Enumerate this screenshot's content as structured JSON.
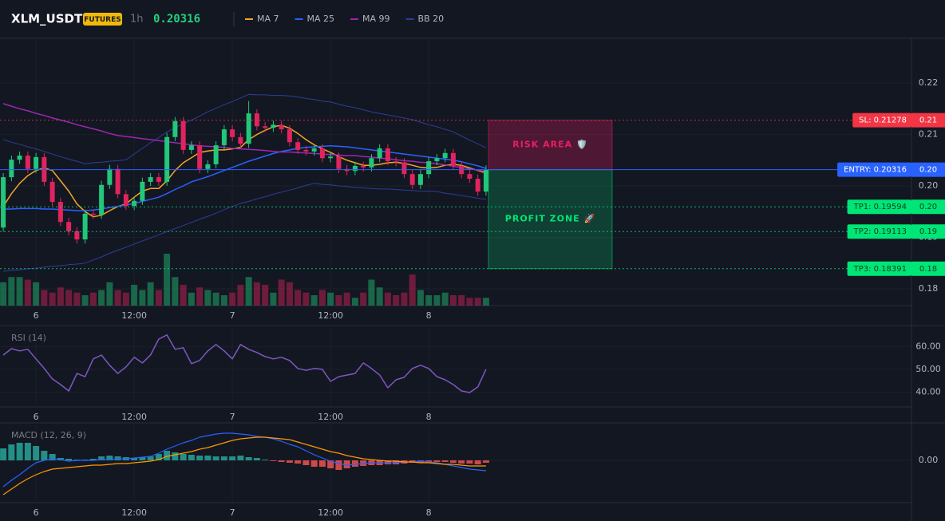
{
  "header": {
    "symbol": "XLM_USDT",
    "badge": "FUTURES",
    "interval": "1h",
    "price": 0.20316
  },
  "chart_data": [
    {
      "type": "candlestick",
      "x": [
        -4,
        -3,
        -2,
        -1,
        0,
        1,
        2,
        3,
        4,
        5,
        6,
        7,
        8,
        9,
        10,
        11,
        12,
        13,
        14,
        15,
        16,
        17,
        18,
        19,
        20,
        21,
        22,
        23,
        24,
        25,
        26,
        27,
        28,
        29,
        30,
        31,
        32,
        33,
        34,
        35,
        36,
        37,
        38,
        39,
        40,
        41,
        42,
        43,
        44,
        45,
        46,
        47,
        48,
        49,
        50,
        51,
        52,
        53,
        54,
        55
      ],
      "open": [
        0.1919,
        0.2017,
        0.2051,
        0.2059,
        0.2033,
        0.2056,
        0.2008,
        0.1969,
        0.193,
        0.1912,
        0.1896,
        0.1946,
        0.1944,
        0.2002,
        0.2033,
        0.1984,
        0.1961,
        0.1971,
        0.2008,
        0.2017,
        0.2008,
        0.2095,
        0.2126,
        0.207,
        0.2079,
        0.2033,
        0.2042,
        0.2079,
        0.211,
        0.2095,
        0.2082,
        0.2141,
        0.2116,
        0.2113,
        0.2119,
        0.211,
        0.2085,
        0.207,
        0.2067,
        0.2073,
        0.2054,
        0.2057,
        0.2033,
        0.2029,
        0.2039,
        0.2036,
        0.2054,
        0.2073,
        0.2048,
        0.2046,
        0.2023,
        0.2002,
        0.2023,
        0.2048,
        0.2054,
        0.2064,
        0.2039,
        0.2023,
        0.2014,
        0.1989
      ],
      "high": [
        0.2025,
        0.2059,
        0.2067,
        0.2067,
        0.2064,
        0.2064,
        0.2016,
        0.1977,
        0.1938,
        0.192,
        0.1954,
        0.1954,
        0.201,
        0.2041,
        0.2041,
        0.1992,
        0.1979,
        0.2016,
        0.2025,
        0.2025,
        0.2103,
        0.2134,
        0.2134,
        0.2087,
        0.2087,
        0.205,
        0.2087,
        0.2118,
        0.2118,
        0.2103,
        0.2165,
        0.2149,
        0.2124,
        0.2127,
        0.2127,
        0.2118,
        0.2093,
        0.2078,
        0.2081,
        0.2081,
        0.2065,
        0.2065,
        0.2041,
        0.2047,
        0.2047,
        0.2062,
        0.2081,
        0.2081,
        0.2056,
        0.2054,
        0.2031,
        0.2031,
        0.2056,
        0.2062,
        0.2072,
        0.2072,
        0.2047,
        0.2031,
        0.2022,
        0.204
      ],
      "low": [
        0.1911,
        0.2009,
        0.2043,
        0.2025,
        0.2025,
        0.2,
        0.1961,
        0.1922,
        0.1904,
        0.1888,
        0.1888,
        0.1936,
        0.1936,
        0.1994,
        0.1976,
        0.1953,
        0.1953,
        0.1963,
        0.2,
        0.2,
        0.2,
        0.2087,
        0.2062,
        0.2062,
        0.2025,
        0.2025,
        0.2034,
        0.2071,
        0.2087,
        0.2074,
        0.2074,
        0.2108,
        0.2105,
        0.2105,
        0.2102,
        0.2077,
        0.2062,
        0.2059,
        0.2059,
        0.2046,
        0.2046,
        0.2025,
        0.2021,
        0.2021,
        0.2028,
        0.2028,
        0.2046,
        0.204,
        0.2038,
        0.2015,
        0.1994,
        0.1994,
        0.2015,
        0.204,
        0.2046,
        0.2031,
        0.2015,
        0.2006,
        0.1981,
        0.1981
      ],
      "close": [
        0.2017,
        0.2051,
        0.2059,
        0.2033,
        0.2056,
        0.2008,
        0.1969,
        0.193,
        0.1912,
        0.1896,
        0.1946,
        0.1944,
        0.2002,
        0.2033,
        0.1984,
        0.1961,
        0.1971,
        0.2008,
        0.2017,
        0.2008,
        0.2095,
        0.2126,
        0.207,
        0.2079,
        0.2033,
        0.2042,
        0.2079,
        0.211,
        0.2095,
        0.2082,
        0.2141,
        0.2116,
        0.2113,
        0.2119,
        0.211,
        0.2085,
        0.207,
        0.2067,
        0.2073,
        0.2054,
        0.2057,
        0.2033,
        0.2029,
        0.2039,
        0.2036,
        0.2054,
        0.2073,
        0.2048,
        0.2046,
        0.2023,
        0.2002,
        0.2023,
        0.2048,
        0.2054,
        0.2064,
        0.2039,
        0.2023,
        0.2014,
        0.1989,
        0.20316
      ],
      "up_color": "#22c77a",
      "down_color": "#e0245e",
      "volume": [
        45,
        55,
        55,
        50,
        45,
        30,
        25,
        35,
        30,
        25,
        20,
        25,
        30,
        45,
        30,
        25,
        40,
        30,
        45,
        30,
        100,
        55,
        40,
        25,
        35,
        30,
        25,
        20,
        25,
        40,
        55,
        45,
        40,
        25,
        50,
        45,
        30,
        25,
        20,
        30,
        25,
        20,
        25,
        15,
        25,
        50,
        35,
        25,
        20,
        25,
        60,
        30,
        20,
        20,
        25,
        20,
        20,
        15,
        15,
        15
      ],
      "volume_lim": [
        0,
        100
      ],
      "overlays": [
        {
          "name": "MA 7",
          "color": "#f5a623",
          "values": [
            0.196,
            0.1985,
            0.2005,
            0.202,
            0.203,
            0.2035,
            0.203,
            0.201,
            0.199,
            0.1965,
            0.195,
            0.194,
            0.1943,
            0.1952,
            0.196,
            0.1965,
            0.1978,
            0.199,
            0.1995,
            0.1995,
            0.201,
            0.203,
            0.2045,
            0.2055,
            0.2065,
            0.2068,
            0.207,
            0.207,
            0.2072,
            0.2075,
            0.209,
            0.21,
            0.2108,
            0.2115,
            0.2118,
            0.2112,
            0.2102,
            0.209,
            0.208,
            0.2072,
            0.2065,
            0.2057,
            0.205,
            0.2045,
            0.204,
            0.204,
            0.2042,
            0.2045,
            0.2046,
            0.2044,
            0.204,
            0.2036,
            0.2035,
            0.2036,
            0.204,
            0.2042,
            0.204,
            0.2035,
            0.203,
            0.2025
          ]
        },
        {
          "name": "MA 25",
          "color": "#2962ff",
          "values": [
            0.1955,
            0.1955,
            0.1956,
            0.1956,
            0.1956,
            0.1955,
            0.1955,
            0.1954,
            0.1953,
            0.1952,
            0.1952,
            0.1953,
            0.1955,
            0.1958,
            0.196,
            0.1963,
            0.1966,
            0.197,
            0.1974,
            0.1978,
            0.1985,
            0.1993,
            0.2,
            0.2008,
            0.2013,
            0.2018,
            0.2024,
            0.203,
            0.2036,
            0.2042,
            0.2048,
            0.2053,
            0.2058,
            0.2063,
            0.2067,
            0.207,
            0.2073,
            0.2075,
            0.2076,
            0.2077,
            0.2078,
            0.2077,
            0.2076,
            0.2074,
            0.2072,
            0.207,
            0.2068,
            0.2066,
            0.2064,
            0.2062,
            0.206,
            0.2058,
            0.2056,
            0.2054,
            0.2052,
            0.205,
            0.2047,
            0.2043,
            0.2039,
            0.2034
          ]
        },
        {
          "name": "MA 99",
          "color": "#9c27b0",
          "values": [
            0.216,
            0.2155,
            0.215,
            0.2146,
            0.2141,
            0.2137,
            0.2132,
            0.2128,
            0.2124,
            0.2119,
            0.2115,
            0.2111,
            0.2107,
            0.2102,
            0.2098,
            0.2096,
            0.2094,
            0.2092,
            0.209,
            0.2088,
            0.2086,
            0.2084,
            0.2082,
            0.208,
            0.2078,
            0.2077,
            0.2076,
            0.2075,
            0.2073,
            0.2072,
            0.2071,
            0.207,
            0.2069,
            0.2067,
            0.2066,
            0.2066,
            0.2065,
            0.2064,
            0.2063,
            0.2062,
            0.2061,
            0.206,
            0.2059,
            0.2059,
            0.2057,
            0.2056,
            0.2054,
            0.2053,
            0.2051,
            0.2049,
            0.2048,
            0.2046,
            0.2045,
            0.2043,
            0.2041,
            0.2038,
            0.2036,
            0.2033,
            0.2031,
            0.2028
          ]
        }
      ],
      "bollinger": {
        "name": "BB 20",
        "color": "#2b3f96",
        "upper": [
          0.209,
          0.2085,
          0.2081,
          0.2076,
          0.2072,
          0.2067,
          0.2062,
          0.2057,
          0.2052,
          0.2048,
          0.2043,
          0.2045,
          0.2046,
          0.2048,
          0.2049,
          0.2051,
          0.2062,
          0.2073,
          0.2084,
          0.2094,
          0.2105,
          0.2113,
          0.2121,
          0.2128,
          0.2136,
          0.2144,
          0.2151,
          0.2158,
          0.2164,
          0.2171,
          0.2178,
          0.2177,
          0.2177,
          0.2176,
          0.2176,
          0.2175,
          0.2173,
          0.217,
          0.2168,
          0.2165,
          0.2163,
          0.2159,
          0.2155,
          0.2152,
          0.2148,
          0.2144,
          0.2141,
          0.2138,
          0.2135,
          0.2132,
          0.2129,
          0.2124,
          0.2119,
          0.2115,
          0.211,
          0.2105,
          0.2097,
          0.2089,
          0.2082,
          0.2074
        ],
        "lower": [
          0.1834,
          0.1836,
          0.1837,
          0.1839,
          0.184,
          0.1842,
          0.1844,
          0.1845,
          0.1847,
          0.1848,
          0.185,
          0.1856,
          0.1862,
          0.1869,
          0.1875,
          0.1881,
          0.1887,
          0.1893,
          0.1899,
          0.1905,
          0.1911,
          0.1917,
          0.1923,
          0.1929,
          0.1935,
          0.1941,
          0.1947,
          0.1954,
          0.196,
          0.1966,
          0.197,
          0.1975,
          0.1979,
          0.1984,
          0.1988,
          0.1992,
          0.1996,
          0.2001,
          0.2005,
          0.2003,
          0.2002,
          0.2,
          0.1999,
          0.1997,
          0.1996,
          0.1995,
          0.1994,
          0.1994,
          0.1993,
          0.1992,
          0.1991,
          0.199,
          0.199,
          0.1989,
          0.1986,
          0.1984,
          0.1981,
          0.1979,
          0.1976,
          0.1974
        ]
      },
      "levels": [
        {
          "label": "SL: 0.21278",
          "value": 0.21278,
          "axis_label": "0.21",
          "color": "#f23645",
          "text_color": "#ffffff",
          "style": "dotted"
        },
        {
          "label": "ENTRY: 0.20316",
          "value": 0.20316,
          "axis_label": "0.20",
          "color": "#2962ff",
          "text_color": "#ffffff",
          "style": "solid"
        },
        {
          "label": "TP1: 0.19594",
          "value": 0.19594,
          "axis_label": "0.20",
          "color": "#00e676",
          "text_color": "#0b3d22",
          "style": "dotted"
        },
        {
          "label": "TP2: 0.19113",
          "value": 0.19113,
          "axis_label": "0.19",
          "color": "#00e676",
          "text_color": "#0b3d22",
          "style": "dotted"
        },
        {
          "label": "TP3: 0.18391",
          "value": 0.18391,
          "axis_label": "0.18",
          "color": "#00e676",
          "text_color": "#0b3d22",
          "style": "dotted"
        }
      ],
      "zones": [
        {
          "label": "RISK AREA 🛡️",
          "color": "#e91e63"
        },
        {
          "label": "PROFIT ZONE 🚀",
          "color": "#00e676"
        }
      ],
      "xlim": [
        -4.4,
        107
      ],
      "xticks": [
        {
          "value": 0,
          "label": "6"
        },
        {
          "value": 12,
          "label": "12:00"
        },
        {
          "value": 24,
          "label": "7"
        },
        {
          "value": 36,
          "label": "12:00"
        },
        {
          "value": 48,
          "label": "8"
        }
      ],
      "ylim": [
        0.17674,
        0.2287
      ],
      "yticks": [
        0.18,
        0.19,
        {
          "value": 0.2,
          "label": "0.20"
        },
        0.21,
        0.22
      ],
      "grid": true
    },
    {
      "type": "line",
      "title": "RSI (14)",
      "color": "#7e57c2",
      "values": [
        56.3,
        59.1,
        58.1,
        58.8,
        54.6,
        50.4,
        45.8,
        43.3,
        40.5,
        48.2,
        46.8,
        54.6,
        56.3,
        51.8,
        48.2,
        51.1,
        55.3,
        52.8,
        56.3,
        63.3,
        65.1,
        58.8,
        59.5,
        52.5,
        53.9,
        58.1,
        60.9,
        58.1,
        54.6,
        60.9,
        58.8,
        57.4,
        55.6,
        54.6,
        55.3,
        53.9,
        50.4,
        49.6,
        50.4,
        50.0,
        44.7,
        46.8,
        47.5,
        48.2,
        52.8,
        50.4,
        47.5,
        41.9,
        45.4,
        46.5,
        50.4,
        51.8,
        50.4,
        46.8,
        45.4,
        43.3,
        40.5,
        39.8,
        42.3,
        50.0
      ],
      "ylim": [
        33.5,
        68.2
      ],
      "yticks": [
        {
          "value": 40,
          "label": "40.00"
        },
        {
          "value": 50,
          "label": "50.00"
        },
        {
          "value": 60,
          "label": "60.00"
        }
      ],
      "grid": true
    },
    {
      "type": "macd",
      "title": "MACD (12, 26, 9)",
      "positive_color": "#26a69a",
      "negative_color": "#ef5350",
      "histogram": [
        0.0015,
        0.002,
        0.0022,
        0.0022,
        0.0018,
        0.0012,
        0.0008,
        0.0003,
        0.0002,
        0.0001,
        0.0001,
        0.0002,
        0.0005,
        0.0006,
        0.0005,
        0.0004,
        0.0003,
        0.0004,
        0.0005,
        0.0008,
        0.0012,
        0.001,
        0.0008,
        0.0007,
        0.0006,
        0.0006,
        0.0005,
        0.0005,
        0.0005,
        0.0006,
        0.0004,
        0.0003,
        0.0001,
        -0.0001,
        -0.0002,
        -0.0003,
        -0.0004,
        -0.0006,
        -0.0008,
        -0.0008,
        -0.001,
        -0.0012,
        -0.001,
        -0.0008,
        -0.0007,
        -0.0006,
        -0.0006,
        -0.0005,
        -0.0005,
        -0.0004,
        -0.0003,
        -0.0003,
        -0.0003,
        -0.0002,
        -0.0002,
        -0.0003,
        -0.0004,
        -0.0004,
        -0.0005,
        -0.0003
      ],
      "macd": {
        "color": "#2962ff",
        "values": [
          -0.0033,
          -0.0025,
          -0.0018,
          -0.001,
          -0.0003,
          0.0,
          0.0002,
          0.0001,
          -0.0001,
          0.0,
          0.0,
          0.0,
          0.0001,
          0.0001,
          0.0002,
          0.0002,
          0.0003,
          0.0004,
          0.0005,
          0.0009,
          0.0014,
          0.0018,
          0.0022,
          0.0025,
          0.0029,
          0.0031,
          0.0033,
          0.0034,
          0.0034,
          0.0033,
          0.0032,
          0.003,
          0.0029,
          0.0027,
          0.0024,
          0.002,
          0.0017,
          0.0012,
          0.0007,
          0.0003,
          -0.0001,
          -0.0004,
          -0.0006,
          -0.0005,
          -0.0004,
          -0.0003,
          -0.0003,
          -0.0003,
          -0.0003,
          -0.0002,
          -0.0002,
          -0.0001,
          -0.0002,
          -0.0003,
          -0.0005,
          -0.0007,
          -0.0009,
          -0.0011,
          -0.0012,
          -0.0013
        ]
      },
      "signal": {
        "color": "#ff9800",
        "values": [
          -0.0043,
          -0.0036,
          -0.0029,
          -0.0023,
          -0.0018,
          -0.0014,
          -0.0011,
          -0.001,
          -0.0009,
          -0.0008,
          -0.0007,
          -0.0006,
          -0.0006,
          -0.0005,
          -0.0004,
          -0.0004,
          -0.0003,
          -0.0002,
          -0.0001,
          0.0001,
          0.0005,
          0.0007,
          0.0009,
          0.0011,
          0.0014,
          0.0016,
          0.0019,
          0.0022,
          0.0025,
          0.0027,
          0.0028,
          0.0029,
          0.0029,
          0.0028,
          0.0027,
          0.0026,
          0.0023,
          0.002,
          0.0017,
          0.0014,
          0.0011,
          0.0009,
          0.0006,
          0.0004,
          0.0002,
          0.0001,
          0.0,
          -0.0001,
          -0.0001,
          -0.0002,
          -0.0002,
          -0.0003,
          -0.0003,
          -0.0004,
          -0.0005,
          -0.0005,
          -0.0006,
          -0.0007,
          -0.0007,
          -0.0007
        ]
      },
      "ylim": [
        -0.0053,
        0.0044
      ],
      "yticks": [
        {
          "value": 0,
          "label": "0.00"
        }
      ],
      "grid": true
    }
  ]
}
